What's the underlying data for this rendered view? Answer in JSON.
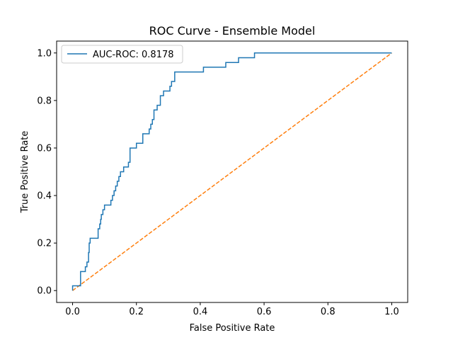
{
  "chart_data": {
    "type": "line",
    "title": "ROC Curve - Ensemble Model",
    "xlabel": "False Positive Rate",
    "ylabel": "True Positive Rate",
    "xlim": [
      -0.05,
      1.05
    ],
    "ylim": [
      -0.05,
      1.05
    ],
    "xticks": [
      0.0,
      0.2,
      0.4,
      0.6,
      0.8,
      1.0
    ],
    "yticks": [
      0.0,
      0.2,
      0.4,
      0.6,
      0.8,
      1.0
    ],
    "xtick_labels": [
      "0.0",
      "0.2",
      "0.4",
      "0.6",
      "0.8",
      "1.0"
    ],
    "ytick_labels": [
      "0.0",
      "0.2",
      "0.4",
      "0.6",
      "0.8",
      "1.0"
    ],
    "grid": false,
    "legend_position": "upper-left",
    "series": [
      {
        "name": "AUC-ROC: 0.8178",
        "color": "#1f77b4",
        "style": "solid",
        "x": [
          0.0,
          0.0,
          0.005,
          0.005,
          0.025,
          0.025,
          0.03,
          0.03,
          0.04,
          0.04,
          0.045,
          0.045,
          0.05,
          0.05,
          0.052,
          0.052,
          0.055,
          0.055,
          0.08,
          0.08,
          0.085,
          0.085,
          0.088,
          0.088,
          0.09,
          0.09,
          0.095,
          0.095,
          0.1,
          0.1,
          0.12,
          0.12,
          0.125,
          0.125,
          0.13,
          0.13,
          0.135,
          0.135,
          0.14,
          0.14,
          0.145,
          0.145,
          0.15,
          0.15,
          0.16,
          0.16,
          0.175,
          0.175,
          0.18,
          0.18,
          0.2,
          0.2,
          0.22,
          0.22,
          0.24,
          0.24,
          0.245,
          0.245,
          0.25,
          0.25,
          0.255,
          0.255,
          0.265,
          0.265,
          0.275,
          0.275,
          0.285,
          0.285,
          0.305,
          0.305,
          0.31,
          0.31,
          0.32,
          0.32,
          0.41,
          0.41,
          0.48,
          0.48,
          0.52,
          0.52,
          0.57,
          0.57,
          1.0
        ],
        "y": [
          0.0,
          0.02,
          0.02,
          0.02,
          0.02,
          0.08,
          0.08,
          0.08,
          0.08,
          0.1,
          0.1,
          0.12,
          0.12,
          0.16,
          0.16,
          0.2,
          0.2,
          0.22,
          0.22,
          0.26,
          0.26,
          0.28,
          0.28,
          0.3,
          0.3,
          0.32,
          0.32,
          0.34,
          0.34,
          0.36,
          0.36,
          0.38,
          0.38,
          0.4,
          0.4,
          0.42,
          0.42,
          0.44,
          0.44,
          0.46,
          0.46,
          0.48,
          0.48,
          0.5,
          0.5,
          0.52,
          0.52,
          0.54,
          0.54,
          0.6,
          0.6,
          0.62,
          0.62,
          0.66,
          0.66,
          0.68,
          0.68,
          0.7,
          0.7,
          0.72,
          0.72,
          0.76,
          0.76,
          0.78,
          0.78,
          0.82,
          0.82,
          0.84,
          0.84,
          0.86,
          0.86,
          0.88,
          0.88,
          0.92,
          0.92,
          0.94,
          0.94,
          0.96,
          0.96,
          0.98,
          0.98,
          1.0,
          1.0
        ]
      },
      {
        "name": "",
        "color": "#ff7f0e",
        "style": "dashed",
        "x": [
          0.0,
          1.0
        ],
        "y": [
          0.0,
          1.0
        ]
      }
    ]
  }
}
